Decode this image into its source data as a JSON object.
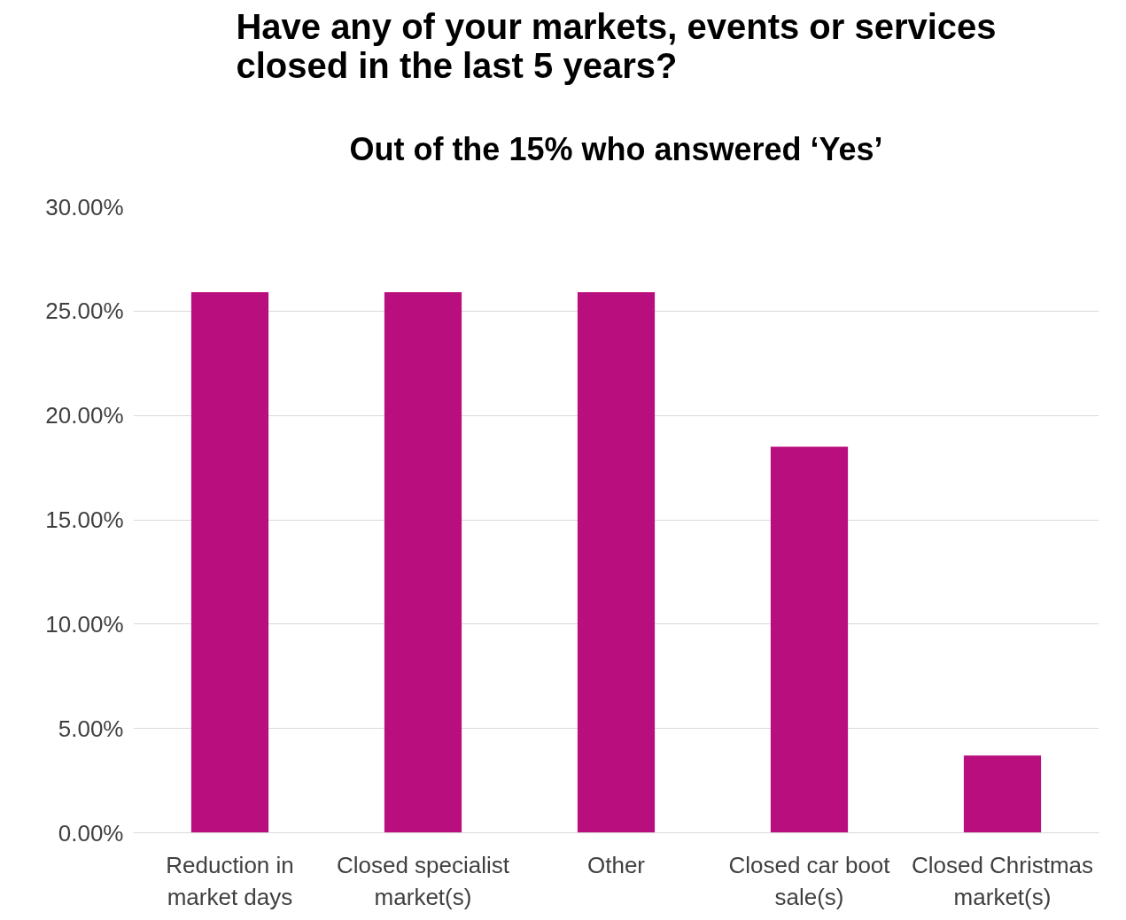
{
  "chart_data": {
    "type": "bar",
    "title": "Have any of your markets, events or services closed in the last 5 years?",
    "subtitle": "Out of the 15% who answered ‘Yes’",
    "categories": [
      "Reduction in market days",
      "Closed specialist market(s)",
      "Other",
      "Closed car boot sale(s)",
      "Closed Christmas market(s)"
    ],
    "values": [
      25.9,
      25.9,
      25.9,
      18.5,
      3.7
    ],
    "color": "#b90e7e",
    "ylim": [
      0,
      30
    ],
    "yticks": [
      {
        "value": 0,
        "label": "0.00%"
      },
      {
        "value": 5,
        "label": "5.00%"
      },
      {
        "value": 10,
        "label": "10.00%"
      },
      {
        "value": 15,
        "label": "15.00%"
      },
      {
        "value": 20,
        "label": "20.00%"
      },
      {
        "value": 25,
        "label": "25.00%"
      },
      {
        "value": 30,
        "label": "30.00%"
      }
    ],
    "grid": "y"
  }
}
